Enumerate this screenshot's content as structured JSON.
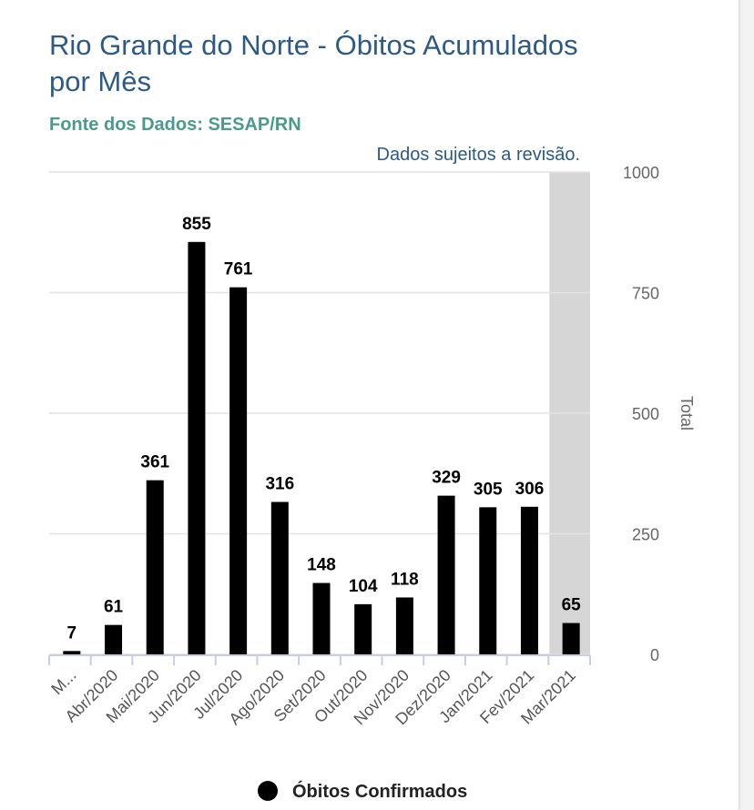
{
  "title": "Rio Grande do Norte - Óbitos Acumulados por Mês",
  "subtitle": "Fonte dos Dados: SESAP/RN",
  "colors": {
    "bar": "#000000",
    "highlight_band": "#d6d6d6",
    "title": "#2c5a86",
    "subtitle": "#4a9a8e"
  },
  "chart_data": {
    "type": "bar",
    "title": "Rio Grande do Norte - Óbitos Acumulados por Mês",
    "subtitle": "Fonte dos Dados: SESAP/RN",
    "categories": [
      "M...",
      "Abr/2020",
      "Mai/2020",
      "Jun/2020",
      "Jul/2020",
      "Ago/2020",
      "Set/2020",
      "Out/2020",
      "Nov/2020",
      "Dez/2020",
      "Jan/2021",
      "Fev/2021",
      "Mar/2021"
    ],
    "series": [
      {
        "name": "Óbitos Confirmados",
        "values": [
          7,
          61,
          361,
          855,
          761,
          316,
          148,
          104,
          118,
          329,
          305,
          306,
          65
        ]
      }
    ],
    "ylabel": "Total",
    "ylim": [
      0,
      1000
    ],
    "yticks": [
      0,
      250,
      500,
      750,
      1000
    ],
    "y_axis_position": "right",
    "highlighted_category": "Mar/2021",
    "highlight_note": "Dados sujeitos a revisão.",
    "grid": true,
    "legend": "bottom-center"
  }
}
